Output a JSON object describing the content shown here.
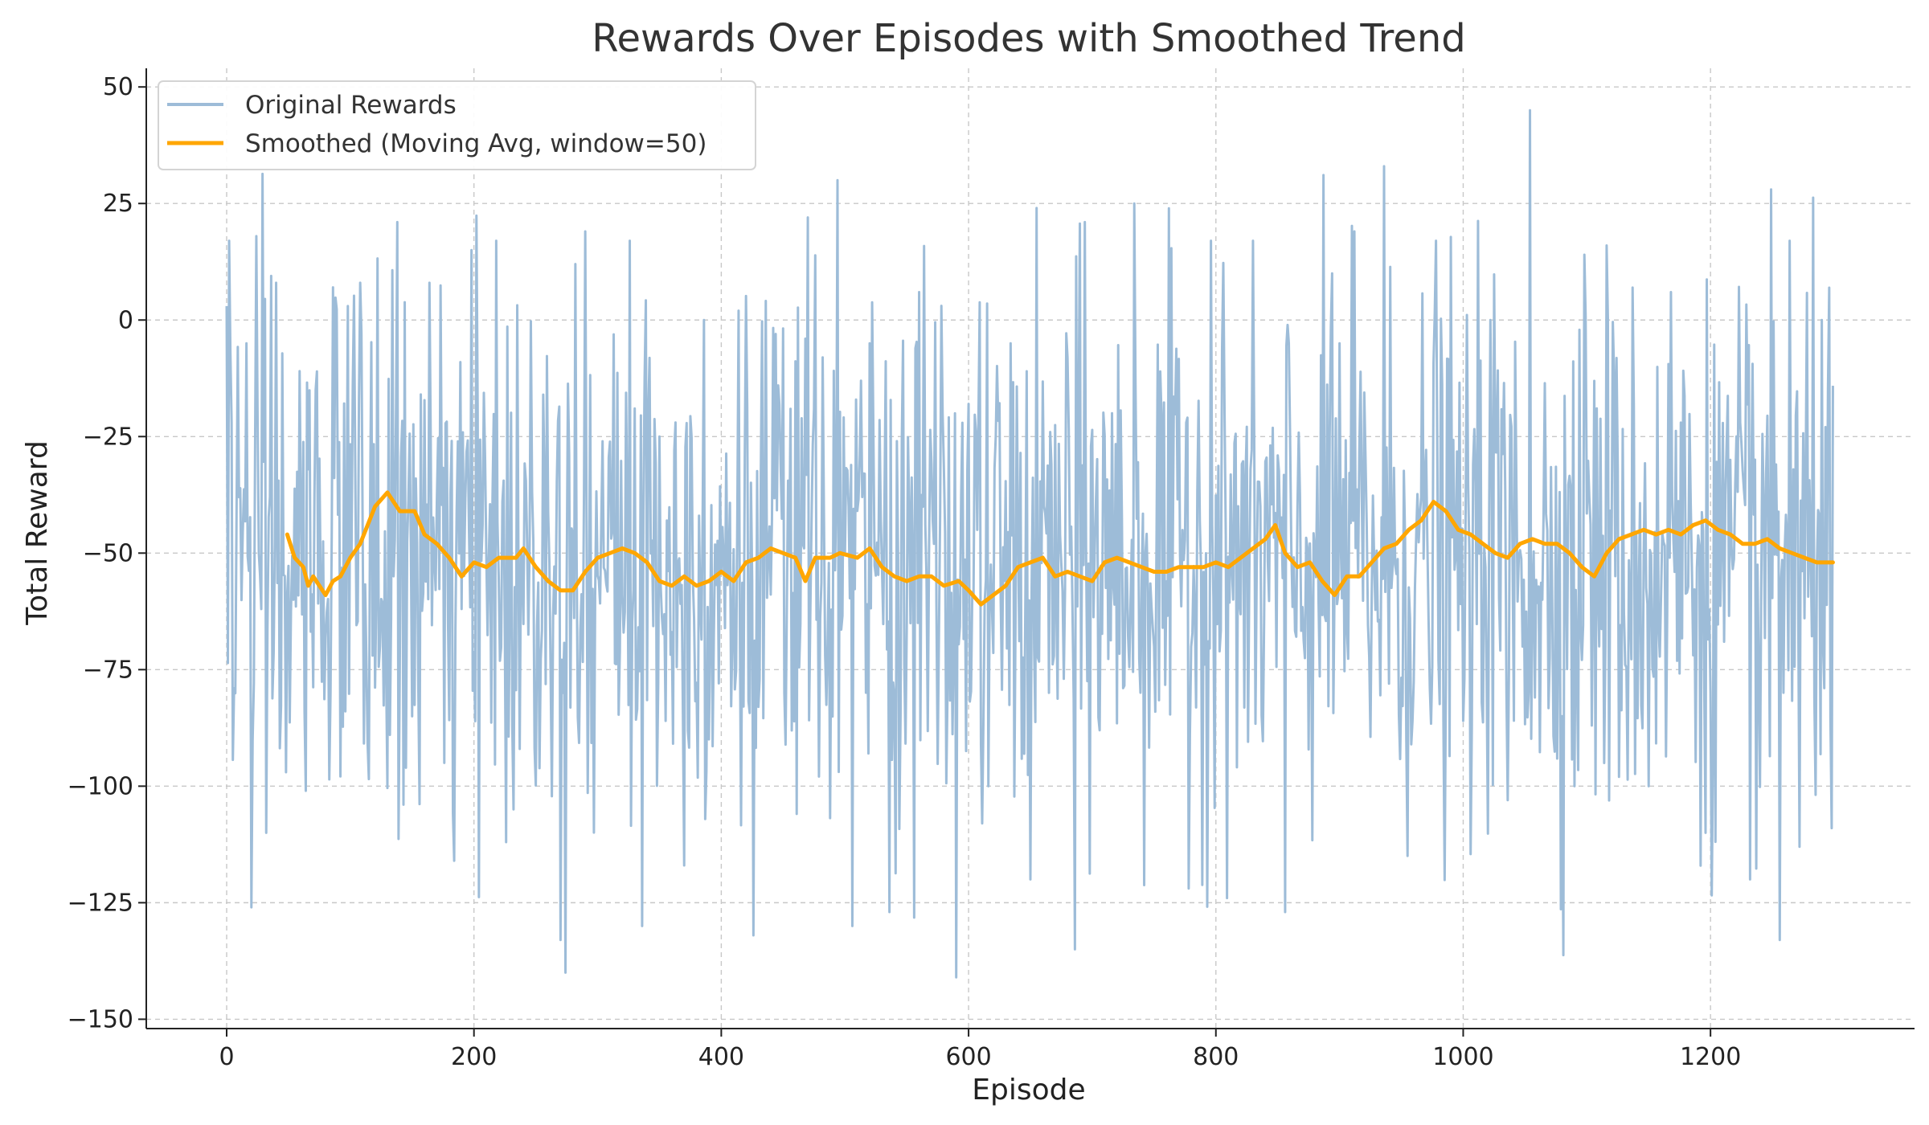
{
  "chart_data": {
    "type": "line",
    "title": "Rewards Over Episodes with Smoothed Trend",
    "xlabel": "Episode",
    "ylabel": "Total Reward",
    "xlim": [
      -65,
      1365
    ],
    "ylim": [
      -152,
      54
    ],
    "xticks": [
      0,
      200,
      400,
      600,
      800,
      1000,
      1200
    ],
    "yticks": [
      50,
      25,
      0,
      -25,
      -50,
      -75,
      -100,
      -125,
      -150
    ],
    "xtick_labels": [
      "0",
      "200",
      "400",
      "600",
      "800",
      "1000",
      "1200"
    ],
    "ytick_labels": [
      "50",
      "25",
      "0",
      "−25",
      "−50",
      "−75",
      "−100",
      "−125",
      "−150"
    ],
    "grid": true,
    "legend_position": "top-left",
    "series": [
      {
        "name": "Original Rewards",
        "color": "#9dbcd8",
        "x_start": 0,
        "x_step": 1,
        "mean": -52,
        "std": 28,
        "count": 1300,
        "points": [
          [
            0,
            3
          ],
          [
            2,
            17
          ],
          [
            4,
            -22
          ],
          [
            6,
            -79
          ],
          [
            10,
            -38
          ],
          [
            16,
            -5
          ],
          [
            20,
            -126
          ],
          [
            24,
            18
          ],
          [
            28,
            -62
          ],
          [
            32,
            -110
          ],
          [
            40,
            8
          ],
          [
            48,
            -97
          ],
          [
            54,
            -60
          ],
          [
            64,
            -101
          ],
          [
            72,
            -15
          ],
          [
            86,
            7
          ],
          [
            98,
            3
          ],
          [
            108,
            8
          ],
          [
            118,
            -72
          ],
          [
            124,
            -70
          ],
          [
            138,
            21
          ],
          [
            150,
            -85
          ],
          [
            164,
            8
          ],
          [
            176,
            -95
          ],
          [
            184,
            -116
          ],
          [
            190,
            -62
          ],
          [
            198,
            15
          ],
          [
            218,
            17
          ],
          [
            226,
            -112
          ],
          [
            256,
            -16
          ],
          [
            270,
            -133
          ],
          [
            282,
            12
          ],
          [
            290,
            19
          ],
          [
            304,
            -26
          ],
          [
            326,
            17
          ],
          [
            336,
            -130
          ],
          [
            350,
            -25
          ],
          [
            370,
            -117
          ],
          [
            386,
            0
          ],
          [
            402,
            -52
          ],
          [
            414,
            2
          ],
          [
            426,
            -132
          ],
          [
            444,
            -3
          ],
          [
            470,
            22
          ],
          [
            480,
            -64
          ],
          [
            494,
            30
          ],
          [
            506,
            -130
          ],
          [
            520,
            -5
          ],
          [
            536,
            -127
          ],
          [
            560,
            6
          ],
          [
            590,
            -141
          ],
          [
            600,
            -18
          ],
          [
            616,
            -100
          ],
          [
            634,
            -5
          ],
          [
            650,
            -120
          ],
          [
            680,
            -8
          ],
          [
            686,
            -135
          ],
          [
            694,
            21
          ],
          [
            706,
            -88
          ],
          [
            716,
            -20
          ],
          [
            734,
            25
          ],
          [
            750,
            -70
          ],
          [
            776,
            -22
          ],
          [
            796,
            17
          ],
          [
            830,
            17
          ],
          [
            856,
            -127
          ],
          [
            866,
            -40
          ],
          [
            894,
            10
          ],
          [
            900,
            -5
          ],
          [
            912,
            19
          ],
          [
            936,
            33
          ],
          [
            954,
            -90
          ],
          [
            978,
            17
          ],
          [
            1000,
            -86
          ],
          [
            1022,
            0
          ],
          [
            1036,
            -103
          ],
          [
            1054,
            45
          ],
          [
            1064,
            -60
          ],
          [
            1090,
            -100
          ],
          [
            1098,
            14
          ],
          [
            1110,
            -70
          ],
          [
            1116,
            16
          ],
          [
            1126,
            -98
          ],
          [
            1150,
            -100
          ],
          [
            1168,
            6
          ],
          [
            1176,
            -22
          ],
          [
            1196,
            -110
          ],
          [
            1216,
            -30
          ],
          [
            1232,
            -120
          ],
          [
            1256,
            -133
          ],
          [
            1264,
            17
          ],
          [
            1272,
            -113
          ],
          [
            1290,
            0
          ],
          [
            1298,
            -109
          ]
        ]
      },
      {
        "name": "Smoothed (Moving Avg, window=50)",
        "color": "#ffa600",
        "points": [
          [
            49,
            -46
          ],
          [
            55,
            -51
          ],
          [
            62,
            -53
          ],
          [
            66,
            -57
          ],
          [
            70,
            -55
          ],
          [
            80,
            -59
          ],
          [
            86,
            -56
          ],
          [
            92,
            -55
          ],
          [
            100,
            -51
          ],
          [
            108,
            -48
          ],
          [
            114,
            -44
          ],
          [
            120,
            -40
          ],
          [
            130,
            -37
          ],
          [
            140,
            -41
          ],
          [
            152,
            -41
          ],
          [
            160,
            -46
          ],
          [
            170,
            -48
          ],
          [
            180,
            -51
          ],
          [
            190,
            -55
          ],
          [
            200,
            -52
          ],
          [
            210,
            -53
          ],
          [
            220,
            -51
          ],
          [
            234,
            -51
          ],
          [
            240,
            -49
          ],
          [
            250,
            -53
          ],
          [
            260,
            -56
          ],
          [
            270,
            -58
          ],
          [
            280,
            -58
          ],
          [
            290,
            -54
          ],
          [
            300,
            -51
          ],
          [
            310,
            -50
          ],
          [
            320,
            -49
          ],
          [
            330,
            -50
          ],
          [
            340,
            -52
          ],
          [
            350,
            -56
          ],
          [
            360,
            -57
          ],
          [
            370,
            -55
          ],
          [
            380,
            -57
          ],
          [
            390,
            -56
          ],
          [
            400,
            -54
          ],
          [
            410,
            -56
          ],
          [
            420,
            -52
          ],
          [
            430,
            -51
          ],
          [
            440,
            -49
          ],
          [
            450,
            -50
          ],
          [
            460,
            -51
          ],
          [
            468,
            -56
          ],
          [
            476,
            -51
          ],
          [
            488,
            -51
          ],
          [
            496,
            -50
          ],
          [
            510,
            -51
          ],
          [
            520,
            -49
          ],
          [
            530,
            -53
          ],
          [
            540,
            -55
          ],
          [
            550,
            -56
          ],
          [
            560,
            -55
          ],
          [
            570,
            -55
          ],
          [
            580,
            -57
          ],
          [
            592,
            -56
          ],
          [
            600,
            -58
          ],
          [
            610,
            -61
          ],
          [
            620,
            -59
          ],
          [
            630,
            -57
          ],
          [
            640,
            -53
          ],
          [
            650,
            -52
          ],
          [
            660,
            -51
          ],
          [
            670,
            -55
          ],
          [
            680,
            -54
          ],
          [
            690,
            -55
          ],
          [
            700,
            -56
          ],
          [
            710,
            -52
          ],
          [
            720,
            -51
          ],
          [
            730,
            -52
          ],
          [
            740,
            -53
          ],
          [
            750,
            -54
          ],
          [
            760,
            -54
          ],
          [
            770,
            -53
          ],
          [
            780,
            -53
          ],
          [
            790,
            -53
          ],
          [
            800,
            -52
          ],
          [
            810,
            -53
          ],
          [
            820,
            -51
          ],
          [
            830,
            -49
          ],
          [
            840,
            -47
          ],
          [
            848,
            -44
          ],
          [
            856,
            -50
          ],
          [
            866,
            -53
          ],
          [
            876,
            -52
          ],
          [
            886,
            -56
          ],
          [
            896,
            -59
          ],
          [
            906,
            -55
          ],
          [
            916,
            -55
          ],
          [
            926,
            -52
          ],
          [
            936,
            -49
          ],
          [
            946,
            -48
          ],
          [
            956,
            -45
          ],
          [
            966,
            -43
          ],
          [
            976,
            -39
          ],
          [
            986,
            -41
          ],
          [
            996,
            -45
          ],
          [
            1006,
            -46
          ],
          [
            1016,
            -48
          ],
          [
            1026,
            -50
          ],
          [
            1036,
            -51
          ],
          [
            1046,
            -48
          ],
          [
            1056,
            -47
          ],
          [
            1066,
            -48
          ],
          [
            1076,
            -48
          ],
          [
            1086,
            -50
          ],
          [
            1096,
            -53
          ],
          [
            1106,
            -55
          ],
          [
            1116,
            -50
          ],
          [
            1126,
            -47
          ],
          [
            1136,
            -46
          ],
          [
            1146,
            -45
          ],
          [
            1156,
            -46
          ],
          [
            1166,
            -45
          ],
          [
            1176,
            -46
          ],
          [
            1186,
            -44
          ],
          [
            1196,
            -43
          ],
          [
            1206,
            -45
          ],
          [
            1216,
            -46
          ],
          [
            1226,
            -48
          ],
          [
            1236,
            -48
          ],
          [
            1246,
            -47
          ],
          [
            1256,
            -49
          ],
          [
            1266,
            -50
          ],
          [
            1276,
            -51
          ],
          [
            1286,
            -52
          ],
          [
            1299,
            -52
          ]
        ]
      }
    ]
  }
}
